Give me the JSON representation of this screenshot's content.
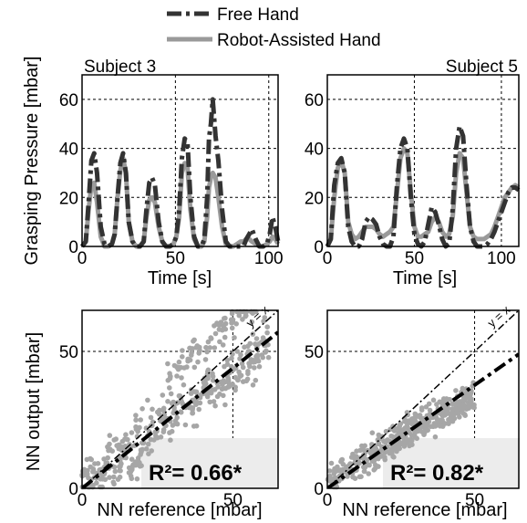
{
  "legend": [
    {
      "label": "Free Hand",
      "style": "dashdot",
      "color": "#333333"
    },
    {
      "label": "Robot-Assisted Hand",
      "style": "solid",
      "color": "#9a9a9a"
    }
  ],
  "colors": {
    "free_hand": "#333333",
    "robot_assisted": "#9a9a9a",
    "scatter": "#a6a6a6",
    "annotation_box": "#ececec"
  },
  "chart_data": [
    {
      "type": "line",
      "title": "Subject 3",
      "xlabel": "Time [s]",
      "ylabel": "Grasping Pressure [mbar]",
      "xlim": [
        0,
        105
      ],
      "ylim": [
        0,
        70
      ],
      "xticks": [
        0,
        50,
        100
      ],
      "yticks": [
        0,
        20,
        40,
        60
      ],
      "grid": true,
      "series": [
        {
          "name": "Free Hand",
          "x": [
            0,
            2,
            3.5,
            5,
            6.5,
            8,
            10,
            12,
            14,
            16,
            17.5,
            19,
            20.5,
            22,
            23.5,
            25,
            27,
            29,
            31,
            33,
            34.5,
            36,
            37.5,
            39,
            41,
            43,
            45,
            47,
            49,
            50.5,
            52,
            53.5,
            55,
            56.5,
            58,
            60,
            62,
            64,
            65.5,
            67,
            68,
            69,
            70,
            71.5,
            73,
            75,
            77,
            79,
            81,
            83,
            85,
            86.5,
            88,
            89.5,
            91,
            93,
            95,
            97,
            99,
            100.5,
            102,
            103.5,
            105
          ],
          "y": [
            0,
            2,
            18,
            35,
            38,
            30,
            8,
            1,
            0,
            1,
            5,
            20,
            34,
            38,
            30,
            10,
            2,
            0,
            0,
            2,
            15,
            26,
            28,
            25,
            10,
            2,
            0,
            0,
            1,
            4,
            15,
            36,
            44,
            42,
            20,
            4,
            0,
            0,
            3,
            20,
            44,
            50,
            60,
            45,
            35,
            15,
            2,
            0,
            0,
            0,
            0,
            0,
            3,
            5,
            7,
            3,
            0,
            0,
            1,
            5,
            12,
            8,
            2
          ]
        },
        {
          "name": "Robot-Assisted Hand",
          "x": [
            0,
            2,
            3.5,
            5,
            6.5,
            8,
            10,
            12,
            14,
            16,
            17.5,
            19,
            20.5,
            22,
            23.5,
            25,
            27,
            29,
            31,
            33,
            34.5,
            36,
            37.5,
            39,
            41,
            43,
            45,
            47,
            49,
            50.5,
            52,
            53.5,
            55,
            56.5,
            58,
            60,
            62,
            64,
            65.5,
            67,
            68,
            69,
            70,
            71.5,
            73,
            75,
            77,
            79,
            81,
            83,
            85,
            86.5,
            88,
            89.5,
            91,
            93,
            95,
            97,
            99,
            100.5,
            102,
            103.5,
            105
          ],
          "y": [
            0,
            2,
            15,
            25,
            26,
            18,
            4,
            0,
            0,
            1,
            5,
            20,
            31,
            36,
            30,
            10,
            2,
            0,
            0,
            2,
            12,
            19,
            20,
            18,
            8,
            2,
            0,
            0,
            1,
            4,
            12,
            30,
            34,
            32,
            15,
            3,
            0,
            0,
            2,
            12,
            24,
            28,
            30,
            28,
            20,
            8,
            1,
            0,
            0,
            1,
            2,
            2,
            3,
            3,
            2,
            1,
            0,
            0,
            1,
            2,
            4,
            3,
            1
          ]
        }
      ]
    },
    {
      "type": "line",
      "title": "Subject 5",
      "xlabel": "Time [s]",
      "ylabel": "",
      "xlim": [
        0,
        110
      ],
      "ylim": [
        0,
        70
      ],
      "xticks": [
        0,
        50,
        100
      ],
      "yticks": [
        0,
        20,
        40,
        60
      ],
      "grid": true,
      "series": [
        {
          "name": "Free Hand",
          "x": [
            0,
            2,
            4,
            6,
            8,
            10,
            12,
            14,
            16,
            18,
            20,
            22,
            24,
            26,
            28,
            30,
            32,
            34,
            36,
            38,
            40,
            42,
            44,
            46,
            48,
            50,
            52,
            54,
            56,
            58,
            60,
            62,
            64,
            66,
            68,
            70,
            72,
            74,
            76,
            78,
            80,
            82,
            84,
            86,
            88,
            90,
            92,
            94,
            96,
            98,
            100,
            102,
            104,
            106,
            108,
            110
          ],
          "y": [
            0,
            3,
            25,
            34,
            36,
            30,
            8,
            2,
            0,
            0,
            3,
            10,
            12,
            11,
            9,
            4,
            1,
            0,
            0,
            4,
            25,
            40,
            44,
            40,
            20,
            5,
            1,
            0,
            2,
            9,
            16,
            14,
            9,
            3,
            0,
            1,
            15,
            40,
            49,
            45,
            25,
            8,
            2,
            0,
            0,
            0,
            1,
            3,
            6,
            10,
            14,
            18,
            22,
            24,
            24,
            23
          ]
        },
        {
          "name": "Robot-Assisted Hand",
          "x": [
            0,
            2,
            4,
            6,
            8,
            10,
            12,
            14,
            16,
            18,
            20,
            22,
            24,
            26,
            28,
            30,
            32,
            34,
            36,
            38,
            40,
            42,
            44,
            46,
            48,
            50,
            52,
            54,
            56,
            58,
            60,
            62,
            64,
            66,
            68,
            70,
            72,
            74,
            76,
            78,
            80,
            82,
            84,
            86,
            88,
            90,
            92,
            94,
            96,
            98,
            100,
            102,
            104,
            106,
            108,
            110
          ],
          "y": [
            0,
            3,
            20,
            32,
            35,
            30,
            10,
            5,
            3,
            4,
            6,
            8,
            8,
            8,
            7,
            5,
            4,
            5,
            6,
            8,
            22,
            36,
            40,
            38,
            22,
            8,
            4,
            4,
            5,
            6,
            10,
            12,
            10,
            6,
            4,
            5,
            12,
            30,
            38,
            36,
            22,
            8,
            4,
            3,
            3,
            3,
            4,
            5,
            8,
            12,
            16,
            20,
            22,
            24,
            25,
            24
          ]
        }
      ]
    },
    {
      "type": "scatter",
      "title": "",
      "xlabel": "NN reference [mbar]",
      "ylabel": "NN output [mbar]",
      "xlim": [
        0,
        65
      ],
      "ylim": [
        0,
        65
      ],
      "xticks": [
        0,
        50
      ],
      "yticks": [
        0,
        50
      ],
      "grid": true,
      "annotation": "R²= 0.66*",
      "lines": [
        {
          "name": "y = x",
          "label_text": "y = x",
          "x": [
            0,
            65
          ],
          "y": [
            0,
            65
          ],
          "style": "dashdot-thin"
        },
        {
          "name": "fit",
          "x": [
            0,
            65
          ],
          "y": [
            0,
            57
          ],
          "style": "dashdot-thick"
        }
      ],
      "point_clouds": [
        {
          "x_range": [
            0,
            62
          ],
          "slope": 0.82,
          "intercept": 2,
          "spread": 11,
          "n": 300
        },
        {
          "x_range": [
            28,
            58
          ],
          "slope": 1.0,
          "intercept": 12,
          "spread": 7,
          "n": 90
        },
        {
          "x_range": [
            0,
            20
          ],
          "slope": 0.4,
          "intercept": 3,
          "spread": 8,
          "n": 60
        }
      ]
    },
    {
      "type": "scatter",
      "title": "",
      "xlabel": "NN reference [mbar]",
      "ylabel": "",
      "xlim": [
        0,
        65
      ],
      "ylim": [
        0,
        65
      ],
      "xticks": [
        0,
        50
      ],
      "yticks": [
        0,
        50
      ],
      "grid": true,
      "annotation": "R²= 0.82*",
      "lines": [
        {
          "name": "y = x",
          "label_text": "y = x",
          "x": [
            0,
            65
          ],
          "y": [
            0,
            65
          ],
          "style": "dashdot-thin"
        },
        {
          "name": "fit",
          "x": [
            0,
            65
          ],
          "y": [
            0,
            49
          ],
          "style": "dashdot-thick"
        }
      ],
      "point_clouds": [
        {
          "x_range": [
            0,
            50
          ],
          "slope": 0.62,
          "intercept": 2,
          "spread": 6,
          "n": 320
        },
        {
          "x_range": [
            15,
            50
          ],
          "slope": 0.55,
          "intercept": 8,
          "spread": 5,
          "n": 120
        }
      ]
    }
  ]
}
